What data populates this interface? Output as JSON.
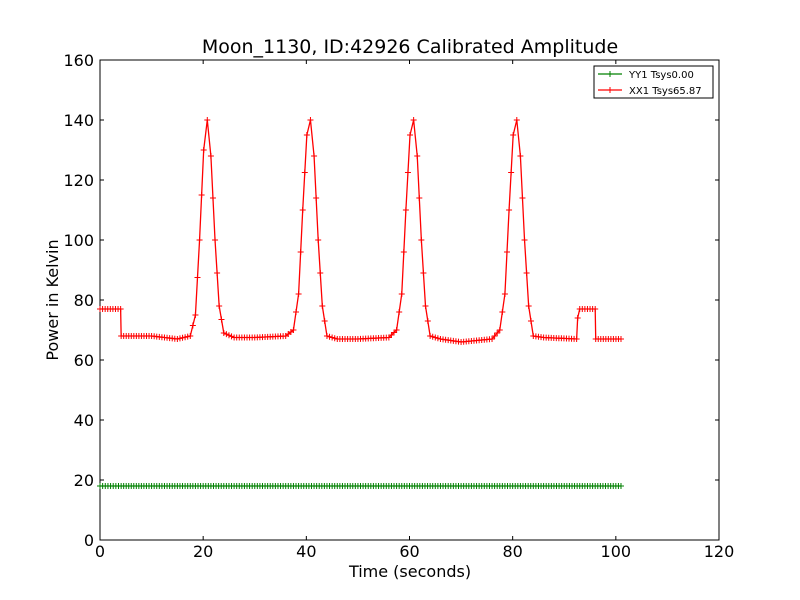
{
  "chart_data": {
    "type": "line",
    "title": "Moon_1130, ID:42926 Calibrated Amplitude",
    "xlabel": "Time (seconds)",
    "ylabel": "Power in Kelvin",
    "xlim": [
      0,
      120
    ],
    "ylim": [
      0,
      160
    ],
    "xticks": [
      0,
      20,
      40,
      60,
      80,
      100,
      120
    ],
    "yticks": [
      0,
      20,
      40,
      60,
      80,
      100,
      120,
      140,
      160
    ],
    "grid": false,
    "legend_position": "top-right",
    "marker": "plus",
    "series": [
      {
        "name": "YY1 Tsys0.00",
        "color": "#008000",
        "x": [
          0,
          4.1,
          9,
          20,
          40,
          60,
          80,
          92.5,
          96,
          101
        ],
        "y": [
          18,
          18,
          18,
          18,
          18,
          18,
          18,
          18,
          18,
          18
        ]
      },
      {
        "name": "XX1 Tsys65.87",
        "color": "#ff0000",
        "x": [
          0,
          4,
          4.1,
          10,
          15,
          17.5,
          18.5,
          19.3,
          20.1,
          20.8,
          21.5,
          22.3,
          23.1,
          24,
          26,
          30,
          36,
          37.5,
          38.5,
          39.3,
          40.1,
          40.8,
          41.5,
          42.3,
          43.1,
          44,
          46,
          50,
          56,
          57.5,
          58.5,
          59.3,
          60.1,
          60.8,
          61.5,
          62.3,
          63.1,
          64,
          66,
          70,
          76,
          77.5,
          78.5,
          79.3,
          80.1,
          80.8,
          81.5,
          82.3,
          83.1,
          84,
          86,
          92.4,
          92.6,
          93,
          96,
          96.1,
          101
        ],
        "y": [
          77,
          77,
          68,
          68,
          67,
          68,
          75,
          100,
          130,
          140,
          128,
          100,
          78,
          69,
          67.5,
          67.5,
          68,
          70,
          82,
          110,
          135,
          140,
          128,
          100,
          78,
          68,
          67,
          67,
          67.5,
          70,
          82,
          110,
          135,
          140,
          128,
          100,
          78,
          68,
          67,
          66,
          67,
          70,
          82,
          110,
          135,
          140,
          128,
          100,
          78,
          68,
          67.5,
          67,
          74,
          77,
          77,
          67,
          67
        ]
      }
    ]
  }
}
